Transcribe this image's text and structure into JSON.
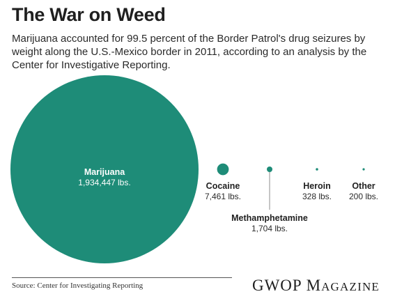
{
  "header": {
    "title": "The War on Weed",
    "subtitle": "Marijuana accounted for 99.5 percent of the Border Patrol's drug seizures by weight along the U.S.-Mexico border in 2011, according to an analysis by the Center for Investigative Reporting."
  },
  "footer": {
    "source": "Source: Center for Investigating Reporting",
    "brand_first": "GWOP M",
    "brand_rest": "AGAZINE"
  },
  "colors": {
    "bubble": "#1e8c78",
    "leader_line": "#8c8c8c"
  },
  "chart_data": {
    "type": "bubble",
    "title": "The War on Weed",
    "unit": "lbs.",
    "series": [
      {
        "label": "Marijuana",
        "value": 1934447,
        "value_label": "1,934,447 lbs."
      },
      {
        "label": "Cocaine",
        "value": 7461,
        "value_label": "7,461 lbs."
      },
      {
        "label": "Methamphetamine",
        "value": 1704,
        "value_label": "1,704 lbs."
      },
      {
        "label": "Heroin",
        "value": 328,
        "value_label": "328 lbs."
      },
      {
        "label": "Other",
        "value": 200,
        "value_label": "200 lbs."
      }
    ]
  }
}
